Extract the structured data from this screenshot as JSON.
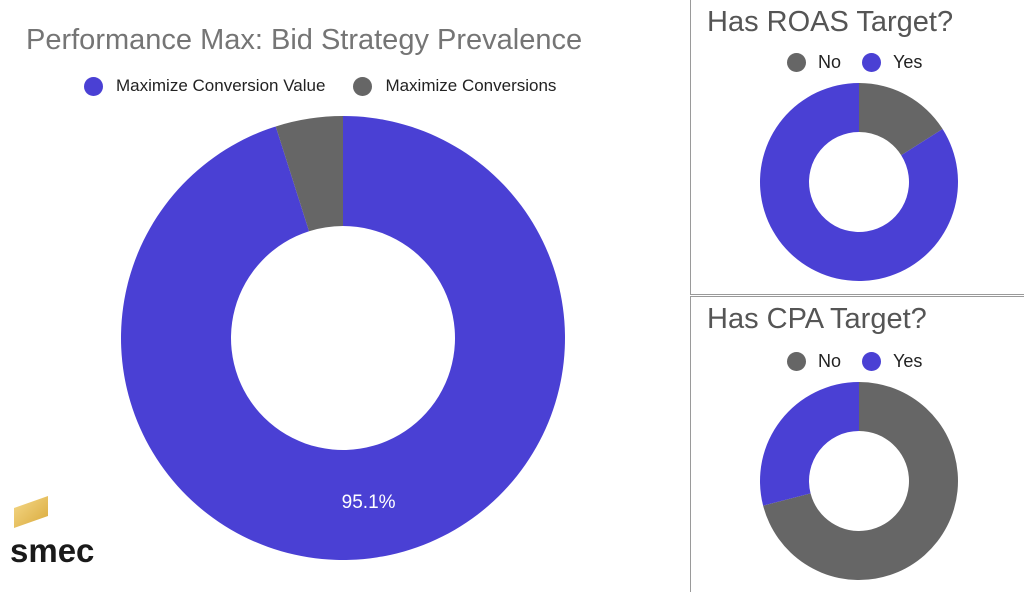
{
  "colors": {
    "conv_value": "#4A40D4",
    "conversions": "#666666",
    "yes": "#4A40D4",
    "no": "#666666"
  },
  "logo": {
    "text": "smec"
  },
  "chart_data": [
    {
      "type": "pie",
      "donut": true,
      "title": "Performance Max: Bid Strategy Prevalence",
      "series": [
        {
          "name": "Maximize Conversion Value",
          "value": 95.1,
          "color": "#4A40D4",
          "label": "95.1%"
        },
        {
          "name": "Maximize Conversions",
          "value": 4.9,
          "color": "#666666",
          "label": ""
        }
      ],
      "legend": "top"
    },
    {
      "type": "pie",
      "donut": true,
      "title": "Has ROAS Target?",
      "series": [
        {
          "name": "No",
          "value": 16,
          "color": "#666666"
        },
        {
          "name": "Yes",
          "value": 84,
          "color": "#4A40D4"
        }
      ],
      "legend": "top"
    },
    {
      "type": "pie",
      "donut": true,
      "title": "Has CPA Target?",
      "series": [
        {
          "name": "No",
          "value": 71,
          "color": "#666666"
        },
        {
          "name": "Yes",
          "value": 29,
          "color": "#4A40D4"
        }
      ],
      "legend": "top"
    }
  ]
}
